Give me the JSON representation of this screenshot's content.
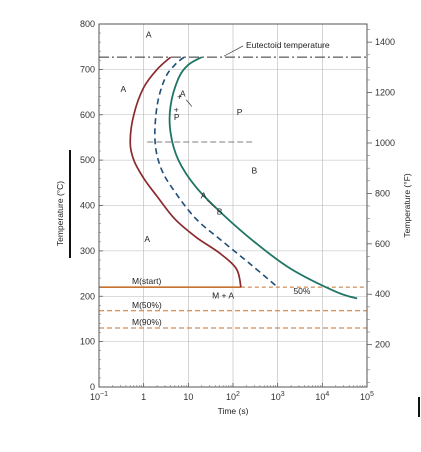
{
  "chart_data": {
    "type": "line",
    "x_scale": "log",
    "xlim": [
      0.1,
      100000
    ],
    "ylim": [
      0,
      800
    ],
    "y2lim_F": [
      32,
      1472
    ],
    "xlabel": "Time (s)",
    "ylabel": "Temperature (°C)",
    "ylabel_right": "Temperature (°F)",
    "x_ticks": [
      {
        "value": 0.1,
        "base": "10",
        "exp": "−1"
      },
      {
        "value": 1,
        "base": "1",
        "exp": ""
      },
      {
        "value": 10,
        "base": "10",
        "exp": ""
      },
      {
        "value": 100,
        "base": "10",
        "exp": "2"
      },
      {
        "value": 1000,
        "base": "10",
        "exp": "3"
      },
      {
        "value": 10000,
        "base": "10",
        "exp": "4"
      },
      {
        "value": 100000,
        "base": "10",
        "exp": "5"
      }
    ],
    "y_ticks": [
      "0",
      "100",
      "200",
      "300",
      "400",
      "500",
      "600",
      "700",
      "800"
    ],
    "y2_ticks": [
      "200",
      "400",
      "600",
      "800",
      "1000",
      "1200",
      "1400"
    ],
    "grid": true,
    "colors": {
      "start": "#8b2a2e",
      "fifty": "#1f4e79",
      "finish": "#1e7563",
      "msline": "#c8722e",
      "grid": "#b8b8b8"
    },
    "series": [
      {
        "points": [
          [
            4,
            727
          ],
          [
            2,
            700
          ],
          [
            1,
            660
          ],
          [
            0.6,
            600
          ],
          [
            0.5,
            540
          ],
          [
            0.6,
            500
          ],
          [
            1,
            460
          ],
          [
            2,
            420
          ],
          [
            5,
            370
          ],
          [
            15,
            330
          ],
          [
            50,
            295
          ],
          [
            120,
            260
          ],
          [
            150,
            220
          ]
        ]
      },
      {
        "points": [
          [
            8,
            727
          ],
          [
            5,
            710
          ],
          [
            3,
            680
          ],
          [
            2,
            620
          ],
          [
            1.8,
            540
          ],
          [
            2.5,
            480
          ],
          [
            5,
            430
          ],
          [
            15,
            370
          ],
          [
            60,
            320
          ],
          [
            250,
            270
          ],
          [
            1000,
            220
          ]
        ]
      },
      {
        "points": [
          [
            20,
            727
          ],
          [
            10,
            710
          ],
          [
            6,
            680
          ],
          [
            4,
            620
          ],
          [
            4,
            560
          ],
          [
            6,
            500
          ],
          [
            15,
            440
          ],
          [
            60,
            380
          ],
          [
            300,
            320
          ],
          [
            2000,
            260
          ],
          [
            20000,
            210
          ],
          [
            60000,
            195
          ]
        ]
      }
    ],
    "horizontal_lines": [
      {
        "label": "Eutectoid temperature",
        "y": 727,
        "style": "dashdot"
      },
      {
        "label": "M(start)",
        "y": 220,
        "style": "solid"
      },
      {
        "label": "M(50%)",
        "y": 168,
        "style": "dashed"
      },
      {
        "label": "M(90%)",
        "y": 130,
        "style": "dashed"
      }
    ],
    "annotations": [
      {
        "text": "A",
        "x": 1.3,
        "y": 770
      },
      {
        "text": "A",
        "x": 0.35,
        "y": 650
      },
      {
        "text": "A",
        "x": 1.2,
        "y": 320
      },
      {
        "text": "A",
        "x": 7.5,
        "y": 640
      },
      {
        "text": "P",
        "x": 140,
        "y": 600
      },
      {
        "text": "P",
        "x": 5.5,
        "y": 588
      },
      {
        "text": "B",
        "x": 300,
        "y": 470
      },
      {
        "text": "A",
        "x": 22,
        "y": 415
      },
      {
        "text": "B",
        "x": 50,
        "y": 380
      },
      {
        "text": "M + A",
        "x": 60,
        "y": 195
      },
      {
        "text": "50%",
        "x": 3500,
        "y": 205
      }
    ]
  }
}
